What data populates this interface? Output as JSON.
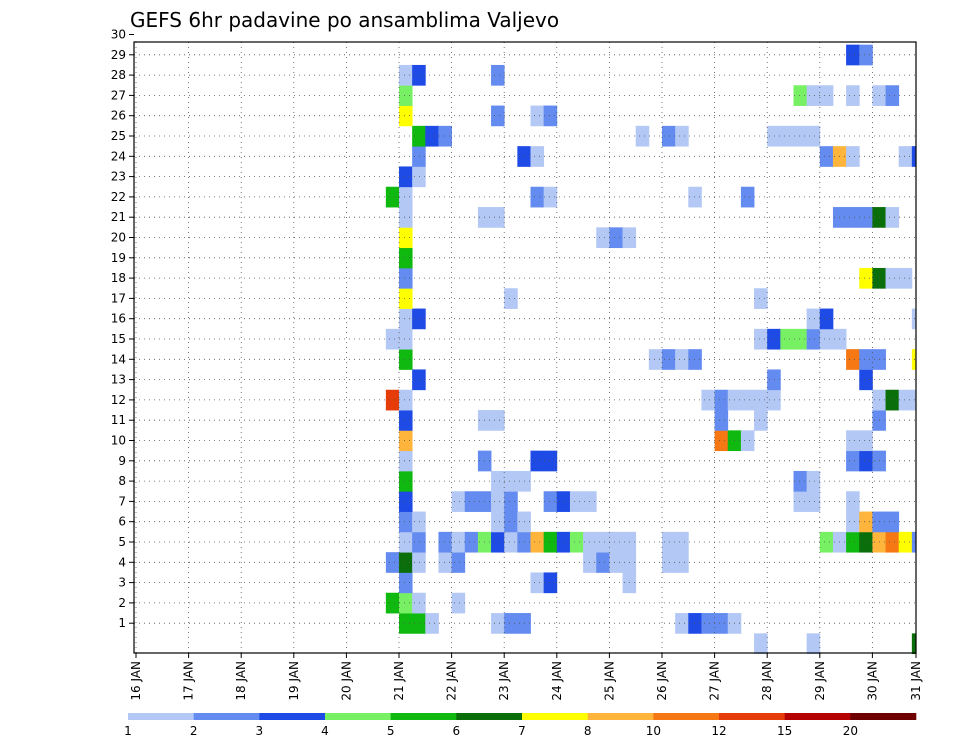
{
  "chart_data": {
    "type": "heatmap",
    "title": "GEFS 6hr padavine po ansamblima Valjevo",
    "xlabel": "",
    "ylabel": "",
    "x_ticks": [
      "16 JAN",
      "17 JAN",
      "18 JAN",
      "19 JAN",
      "20 JAN",
      "21 JAN",
      "22 JAN",
      "23 JAN",
      "24 JAN",
      "25 JAN",
      "26 JAN",
      "27 JAN",
      "28 JAN",
      "29 JAN",
      "30 JAN",
      "31 JAN"
    ],
    "y_ticks": [
      "1",
      "2",
      "3",
      "4",
      "5",
      "6",
      "7",
      "8",
      "9",
      "10",
      "11",
      "12",
      "13",
      "14",
      "15",
      "16",
      "17",
      "18",
      "19",
      "20",
      "21",
      "22",
      "23",
      "24",
      "25",
      "26",
      "27",
      "28",
      "29",
      "30"
    ],
    "x_range": [
      "16 JAN 00Z",
      "31 JAN 00Z"
    ],
    "y_range": [
      0,
      30
    ],
    "grid": true,
    "time_step": "6hr",
    "colorbar": {
      "placement": "bottom",
      "levels": [
        "1",
        "2",
        "3",
        "4",
        "5",
        "6",
        "7",
        "8",
        "10",
        "12",
        "15",
        "20"
      ],
      "colors": [
        "#b4c8f5",
        "#648cf0",
        "#1e4be6",
        "#78f064",
        "#0fb90f",
        "#0a6e0a",
        "#ffff00",
        "#ffb43c",
        "#f57814",
        "#e63c0a",
        "#b40000",
        "#6e0000"
      ]
    },
    "cells": [
      {
        "m": 1,
        "t": "21 JAN 00Z",
        "c": 4
      },
      {
        "m": 1,
        "t": "21 JAN 06Z",
        "c": 4
      },
      {
        "m": 1,
        "t": "21 JAN 12Z",
        "c": 0
      },
      {
        "m": 1,
        "t": "22 JAN 18Z",
        "c": 0
      },
      {
        "m": 1,
        "t": "23 JAN 00Z",
        "c": 1
      },
      {
        "m": 1,
        "t": "23 JAN 06Z",
        "c": 1
      },
      {
        "m": 1,
        "t": "26 JAN 06Z",
        "c": 0
      },
      {
        "m": 1,
        "t": "26 JAN 12Z",
        "c": 2
      },
      {
        "m": 1,
        "t": "26 JAN 18Z",
        "c": 1
      },
      {
        "m": 1,
        "t": "27 JAN 00Z",
        "c": 1
      },
      {
        "m": 1,
        "t": "27 JAN 06Z",
        "c": 0
      },
      {
        "m": 0,
        "t": "27 JAN 18Z",
        "c": 0
      },
      {
        "m": 0,
        "t": "28 JAN 18Z",
        "c": 0
      },
      {
        "m": 0,
        "t": "30 JAN 18Z",
        "c": 5
      },
      {
        "m": 2,
        "t": "20 JAN 18Z",
        "c": 4
      },
      {
        "m": 2,
        "t": "21 JAN 00Z",
        "c": 3
      },
      {
        "m": 2,
        "t": "21 JAN 06Z",
        "c": 0
      },
      {
        "m": 2,
        "t": "22 JAN 00Z",
        "c": 0
      },
      {
        "m": 3,
        "t": "21 JAN 00Z",
        "c": 1
      },
      {
        "m": 3,
        "t": "23 JAN 12Z",
        "c": 0
      },
      {
        "m": 3,
        "t": "23 JAN 18Z",
        "c": 2
      },
      {
        "m": 3,
        "t": "25 JAN 06Z",
        "c": 0
      },
      {
        "m": 4,
        "t": "20 JAN 18Z",
        "c": 1
      },
      {
        "m": 4,
        "t": "21 JAN 00Z",
        "c": 5
      },
      {
        "m": 4,
        "t": "21 JAN 06Z",
        "c": 0
      },
      {
        "m": 4,
        "t": "21 JAN 18Z",
        "c": 0
      },
      {
        "m": 4,
        "t": "22 JAN 00Z",
        "c": 1
      },
      {
        "m": 4,
        "t": "24 JAN 12Z",
        "c": 0
      },
      {
        "m": 4,
        "t": "24 JAN 18Z",
        "c": 1
      },
      {
        "m": 4,
        "t": "25 JAN 00Z",
        "c": 0
      },
      {
        "m": 4,
        "t": "25 JAN 06Z",
        "c": 0
      },
      {
        "m": 4,
        "t": "26 JAN 00Z",
        "c": 0
      },
      {
        "m": 4,
        "t": "26 JAN 06Z",
        "c": 0
      },
      {
        "m": 5,
        "t": "21 JAN 00Z",
        "c": 0
      },
      {
        "m": 5,
        "t": "21 JAN 06Z",
        "c": 1
      },
      {
        "m": 5,
        "t": "21 JAN 18Z",
        "c": 1
      },
      {
        "m": 5,
        "t": "22 JAN 00Z",
        "c": 0
      },
      {
        "m": 5,
        "t": "22 JAN 06Z",
        "c": 1
      },
      {
        "m": 5,
        "t": "22 JAN 12Z",
        "c": 3
      },
      {
        "m": 5,
        "t": "22 JAN 18Z",
        "c": 2
      },
      {
        "m": 5,
        "t": "23 JAN 00Z",
        "c": 0
      },
      {
        "m": 5,
        "t": "23 JAN 06Z",
        "c": 1
      },
      {
        "m": 5,
        "t": "23 JAN 12Z",
        "c": 7
      },
      {
        "m": 5,
        "t": "23 JAN 18Z",
        "c": 4
      },
      {
        "m": 5,
        "t": "24 JAN 00Z",
        "c": 2
      },
      {
        "m": 5,
        "t": "24 JAN 06Z",
        "c": 3
      },
      {
        "m": 5,
        "t": "24 JAN 12Z",
        "c": 0
      },
      {
        "m": 5,
        "t": "24 JAN 18Z",
        "c": 0
      },
      {
        "m": 5,
        "t": "25 JAN 00Z",
        "c": 0
      },
      {
        "m": 5,
        "t": "25 JAN 06Z",
        "c": 0
      },
      {
        "m": 5,
        "t": "26 JAN 00Z",
        "c": 0
      },
      {
        "m": 5,
        "t": "26 JAN 06Z",
        "c": 0
      },
      {
        "m": 5,
        "t": "29 JAN 00Z",
        "c": 3
      },
      {
        "m": 5,
        "t": "29 JAN 06Z",
        "c": 0
      },
      {
        "m": 5,
        "t": "29 JAN 12Z",
        "c": 4
      },
      {
        "m": 5,
        "t": "29 JAN 18Z",
        "c": 5
      },
      {
        "m": 5,
        "t": "30 JAN 00Z",
        "c": 7
      },
      {
        "m": 5,
        "t": "30 JAN 06Z",
        "c": 8
      },
      {
        "m": 5,
        "t": "30 JAN 12Z",
        "c": 6
      },
      {
        "m": 5,
        "t": "30 JAN 18Z",
        "c": 1
      },
      {
        "m": 5,
        "t": "31 JAN 00Z",
        "c": 1
      },
      {
        "m": 6,
        "t": "21 JAN 00Z",
        "c": 1
      },
      {
        "m": 6,
        "t": "21 JAN 06Z",
        "c": 0
      },
      {
        "m": 6,
        "t": "22 JAN 18Z",
        "c": 0
      },
      {
        "m": 6,
        "t": "23 JAN 00Z",
        "c": 1
      },
      {
        "m": 6,
        "t": "23 JAN 06Z",
        "c": 0
      },
      {
        "m": 6,
        "t": "29 JAN 12Z",
        "c": 0
      },
      {
        "m": 6,
        "t": "29 JAN 18Z",
        "c": 7
      },
      {
        "m": 6,
        "t": "30 JAN 00Z",
        "c": 1
      },
      {
        "m": 6,
        "t": "30 JAN 06Z",
        "c": 1
      },
      {
        "m": 7,
        "t": "21 JAN 00Z",
        "c": 2
      },
      {
        "m": 7,
        "t": "22 JAN 00Z",
        "c": 0
      },
      {
        "m": 7,
        "t": "22 JAN 06Z",
        "c": 1
      },
      {
        "m": 7,
        "t": "22 JAN 12Z",
        "c": 1
      },
      {
        "m": 7,
        "t": "22 JAN 18Z",
        "c": 0
      },
      {
        "m": 7,
        "t": "23 JAN 00Z",
        "c": 1
      },
      {
        "m": 7,
        "t": "23 JAN 18Z",
        "c": 1
      },
      {
        "m": 7,
        "t": "24 JAN 00Z",
        "c": 2
      },
      {
        "m": 7,
        "t": "24 JAN 06Z",
        "c": 0
      },
      {
        "m": 7,
        "t": "24 JAN 12Z",
        "c": 0
      },
      {
        "m": 7,
        "t": "28 JAN 12Z",
        "c": 0
      },
      {
        "m": 7,
        "t": "28 JAN 18Z",
        "c": 0
      },
      {
        "m": 7,
        "t": "29 JAN 12Z",
        "c": 0
      },
      {
        "m": 8,
        "t": "21 JAN 00Z",
        "c": 4
      },
      {
        "m": 8,
        "t": "22 JAN 18Z",
        "c": 0
      },
      {
        "m": 8,
        "t": "23 JAN 00Z",
        "c": 0
      },
      {
        "m": 8,
        "t": "23 JAN 06Z",
        "c": 0
      },
      {
        "m": 8,
        "t": "28 JAN 12Z",
        "c": 1
      },
      {
        "m": 8,
        "t": "28 JAN 18Z",
        "c": 0
      },
      {
        "m": 9,
        "t": "21 JAN 00Z",
        "c": 0
      },
      {
        "m": 9,
        "t": "22 JAN 12Z",
        "c": 1
      },
      {
        "m": 9,
        "t": "23 JAN 12Z",
        "c": 2
      },
      {
        "m": 9,
        "t": "23 JAN 18Z",
        "c": 2
      },
      {
        "m": 9,
        "t": "29 JAN 12Z",
        "c": 1
      },
      {
        "m": 9,
        "t": "29 JAN 18Z",
        "c": 2
      },
      {
        "m": 9,
        "t": "30 JAN 00Z",
        "c": 1
      },
      {
        "m": 10,
        "t": "21 JAN 00Z",
        "c": 7
      },
      {
        "m": 10,
        "t": "27 JAN 00Z",
        "c": 8
      },
      {
        "m": 10,
        "t": "27 JAN 06Z",
        "c": 4
      },
      {
        "m": 10,
        "t": "27 JAN 12Z",
        "c": 0
      },
      {
        "m": 10,
        "t": "29 JAN 12Z",
        "c": 0
      },
      {
        "m": 10,
        "t": "29 JAN 18Z",
        "c": 0
      },
      {
        "m": 11,
        "t": "21 JAN 00Z",
        "c": 2
      },
      {
        "m": 11,
        "t": "22 JAN 12Z",
        "c": 0
      },
      {
        "m": 11,
        "t": "22 JAN 18Z",
        "c": 0
      },
      {
        "m": 11,
        "t": "27 JAN 00Z",
        "c": 1
      },
      {
        "m": 11,
        "t": "27 JAN 18Z",
        "c": 0
      },
      {
        "m": 11,
        "t": "30 JAN 00Z",
        "c": 1
      },
      {
        "m": 12,
        "t": "20 JAN 18Z",
        "c": 9
      },
      {
        "m": 12,
        "t": "21 JAN 00Z",
        "c": 0
      },
      {
        "m": 12,
        "t": "26 JAN 18Z",
        "c": 0
      },
      {
        "m": 12,
        "t": "27 JAN 00Z",
        "c": 1
      },
      {
        "m": 12,
        "t": "27 JAN 06Z",
        "c": 0
      },
      {
        "m": 12,
        "t": "27 JAN 12Z",
        "c": 0
      },
      {
        "m": 12,
        "t": "27 JAN 18Z",
        "c": 0
      },
      {
        "m": 12,
        "t": "28 JAN 00Z",
        "c": 0
      },
      {
        "m": 12,
        "t": "30 JAN 00Z",
        "c": 0
      },
      {
        "m": 12,
        "t": "30 JAN 06Z",
        "c": 5
      },
      {
        "m": 12,
        "t": "30 JAN 12Z",
        "c": 0
      },
      {
        "m": 12,
        "t": "30 JAN 18Z",
        "c": 0
      },
      {
        "m": 13,
        "t": "21 JAN 06Z",
        "c": 2
      },
      {
        "m": 13,
        "t": "28 JAN 00Z",
        "c": 1
      },
      {
        "m": 13,
        "t": "29 JAN 18Z",
        "c": 2
      },
      {
        "m": 14,
        "t": "21 JAN 00Z",
        "c": 4
      },
      {
        "m": 14,
        "t": "25 JAN 18Z",
        "c": 0
      },
      {
        "m": 14,
        "t": "26 JAN 00Z",
        "c": 1
      },
      {
        "m": 14,
        "t": "26 JAN 06Z",
        "c": 0
      },
      {
        "m": 14,
        "t": "26 JAN 12Z",
        "c": 1
      },
      {
        "m": 14,
        "t": "29 JAN 12Z",
        "c": 8
      },
      {
        "m": 14,
        "t": "29 JAN 18Z",
        "c": 1
      },
      {
        "m": 14,
        "t": "30 JAN 00Z",
        "c": 1
      },
      {
        "m": 14,
        "t": "30 JAN 18Z",
        "c": 6
      },
      {
        "m": 15,
        "t": "20 JAN 18Z",
        "c": 0
      },
      {
        "m": 15,
        "t": "21 JAN 00Z",
        "c": 0
      },
      {
        "m": 15,
        "t": "27 JAN 18Z",
        "c": 0
      },
      {
        "m": 15,
        "t": "28 JAN 00Z",
        "c": 2
      },
      {
        "m": 15,
        "t": "28 JAN 06Z",
        "c": 3
      },
      {
        "m": 15,
        "t": "28 JAN 12Z",
        "c": 3
      },
      {
        "m": 15,
        "t": "28 JAN 18Z",
        "c": 1
      },
      {
        "m": 15,
        "t": "29 JAN 00Z",
        "c": 0
      },
      {
        "m": 15,
        "t": "29 JAN 06Z",
        "c": 0
      },
      {
        "m": 16,
        "t": "21 JAN 00Z",
        "c": 0
      },
      {
        "m": 16,
        "t": "21 JAN 06Z",
        "c": 2
      },
      {
        "m": 16,
        "t": "28 JAN 18Z",
        "c": 0
      },
      {
        "m": 16,
        "t": "29 JAN 00Z",
        "c": 2
      },
      {
        "m": 16,
        "t": "30 JAN 18Z",
        "c": 0
      },
      {
        "m": 17,
        "t": "21 JAN 00Z",
        "c": 6
      },
      {
        "m": 17,
        "t": "23 JAN 00Z",
        "c": 0
      },
      {
        "m": 17,
        "t": "27 JAN 18Z",
        "c": 0
      },
      {
        "m": 18,
        "t": "21 JAN 00Z",
        "c": 1
      },
      {
        "m": 18,
        "t": "29 JAN 18Z",
        "c": 6
      },
      {
        "m": 18,
        "t": "30 JAN 00Z",
        "c": 5
      },
      {
        "m": 18,
        "t": "30 JAN 06Z",
        "c": 0
      },
      {
        "m": 18,
        "t": "30 JAN 12Z",
        "c": 0
      },
      {
        "m": 19,
        "t": "21 JAN 00Z",
        "c": 4
      },
      {
        "m": 20,
        "t": "21 JAN 00Z",
        "c": 6
      },
      {
        "m": 20,
        "t": "24 JAN 18Z",
        "c": 0
      },
      {
        "m": 20,
        "t": "25 JAN 00Z",
        "c": 1
      },
      {
        "m": 20,
        "t": "25 JAN 06Z",
        "c": 0
      },
      {
        "m": 21,
        "t": "21 JAN 00Z",
        "c": 0
      },
      {
        "m": 21,
        "t": "22 JAN 12Z",
        "c": 0
      },
      {
        "m": 21,
        "t": "22 JAN 18Z",
        "c": 0
      },
      {
        "m": 21,
        "t": "29 JAN 06Z",
        "c": 1
      },
      {
        "m": 21,
        "t": "29 JAN 12Z",
        "c": 1
      },
      {
        "m": 21,
        "t": "29 JAN 18Z",
        "c": 1
      },
      {
        "m": 21,
        "t": "30 JAN 00Z",
        "c": 5
      },
      {
        "m": 21,
        "t": "30 JAN 06Z",
        "c": 0
      },
      {
        "m": 22,
        "t": "20 JAN 18Z",
        "c": 4
      },
      {
        "m": 22,
        "t": "21 JAN 00Z",
        "c": 0
      },
      {
        "m": 22,
        "t": "23 JAN 12Z",
        "c": 1
      },
      {
        "m": 22,
        "t": "23 JAN 18Z",
        "c": 0
      },
      {
        "m": 22,
        "t": "26 JAN 12Z",
        "c": 0
      },
      {
        "m": 22,
        "t": "27 JAN 12Z",
        "c": 1
      },
      {
        "m": 23,
        "t": "21 JAN 00Z",
        "c": 2
      },
      {
        "m": 23,
        "t": "21 JAN 06Z",
        "c": 0
      },
      {
        "m": 24,
        "t": "21 JAN 06Z",
        "c": 1
      },
      {
        "m": 24,
        "t": "23 JAN 06Z",
        "c": 2
      },
      {
        "m": 24,
        "t": "23 JAN 12Z",
        "c": 0
      },
      {
        "m": 24,
        "t": "29 JAN 00Z",
        "c": 1
      },
      {
        "m": 24,
        "t": "29 JAN 06Z",
        "c": 7
      },
      {
        "m": 24,
        "t": "29 JAN 12Z",
        "c": 0
      },
      {
        "m": 24,
        "t": "30 JAN 12Z",
        "c": 0
      },
      {
        "m": 24,
        "t": "30 JAN 18Z",
        "c": 2
      },
      {
        "m": 25,
        "t": "21 JAN 06Z",
        "c": 4
      },
      {
        "m": 25,
        "t": "21 JAN 12Z",
        "c": 2
      },
      {
        "m": 25,
        "t": "21 JAN 18Z",
        "c": 1
      },
      {
        "m": 25,
        "t": "25 JAN 12Z",
        "c": 0
      },
      {
        "m": 25,
        "t": "26 JAN 00Z",
        "c": 1
      },
      {
        "m": 25,
        "t": "26 JAN 06Z",
        "c": 0
      },
      {
        "m": 25,
        "t": "28 JAN 00Z",
        "c": 0
      },
      {
        "m": 25,
        "t": "28 JAN 06Z",
        "c": 0
      },
      {
        "m": 25,
        "t": "28 JAN 12Z",
        "c": 0
      },
      {
        "m": 25,
        "t": "28 JAN 18Z",
        "c": 0
      },
      {
        "m": 26,
        "t": "21 JAN 00Z",
        "c": 6
      },
      {
        "m": 26,
        "t": "22 JAN 18Z",
        "c": 1
      },
      {
        "m": 26,
        "t": "23 JAN 12Z",
        "c": 0
      },
      {
        "m": 26,
        "t": "23 JAN 18Z",
        "c": 1
      },
      {
        "m": 27,
        "t": "21 JAN 00Z",
        "c": 3
      },
      {
        "m": 27,
        "t": "28 JAN 12Z",
        "c": 3
      },
      {
        "m": 27,
        "t": "28 JAN 18Z",
        "c": 0
      },
      {
        "m": 27,
        "t": "29 JAN 00Z",
        "c": 0
      },
      {
        "m": 27,
        "t": "29 JAN 12Z",
        "c": 0
      },
      {
        "m": 27,
        "t": "30 JAN 00Z",
        "c": 0
      },
      {
        "m": 27,
        "t": "30 JAN 06Z",
        "c": 1
      },
      {
        "m": 28,
        "t": "21 JAN 00Z",
        "c": 0
      },
      {
        "m": 28,
        "t": "21 JAN 06Z",
        "c": 2
      },
      {
        "m": 28,
        "t": "22 JAN 18Z",
        "c": 1
      },
      {
        "m": 29,
        "t": "29 JAN 12Z",
        "c": 2
      },
      {
        "m": 29,
        "t": "29 JAN 18Z",
        "c": 1
      }
    ]
  }
}
